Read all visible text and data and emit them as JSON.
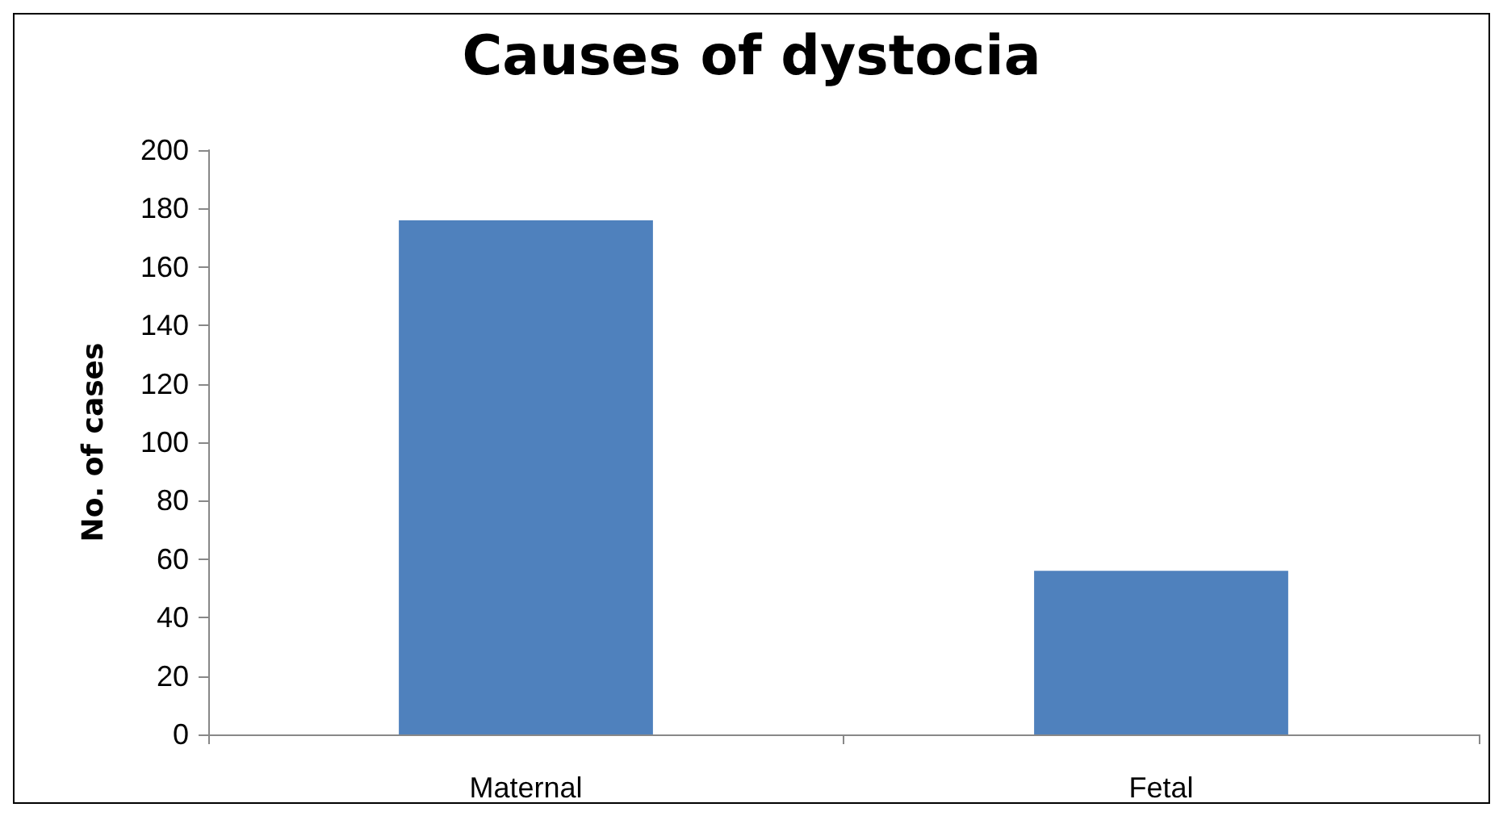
{
  "chart_data": {
    "type": "bar",
    "title": "Causes of dystocia",
    "ylabel": "No. of cases",
    "categories": [
      "Maternal",
      "Fetal"
    ],
    "values": [
      176,
      56
    ],
    "color": "#4f81bd",
    "ylim": [
      0,
      200
    ],
    "yticks": [
      0,
      20,
      40,
      60,
      80,
      100,
      120,
      140,
      160,
      180,
      200
    ],
    "grid": false
  }
}
